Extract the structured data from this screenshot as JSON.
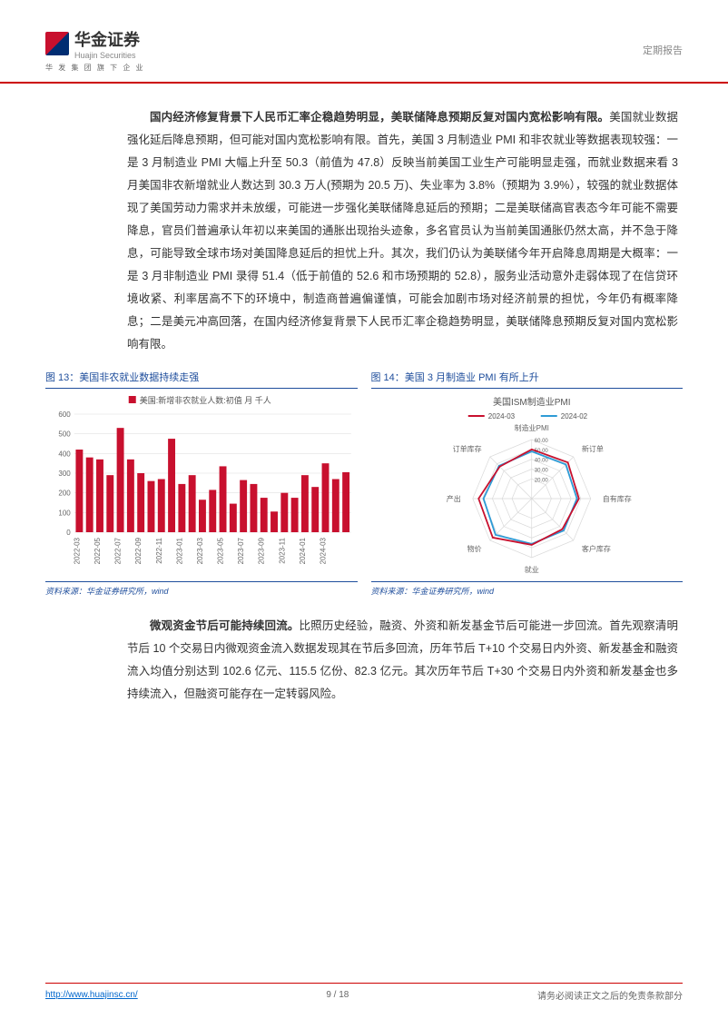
{
  "header": {
    "company_cn": "华金证券",
    "company_en": "Huajin Securities",
    "tagline": "华 发 集 团 旗 下 企 业",
    "report_type": "定期报告"
  },
  "para1": {
    "lead": "国内经济修复背景下人民币汇率企稳趋势明显，美联储降息预期反复对国内宽松影响有限。",
    "body": "美国就业数据强化延后降息预期，但可能对国内宽松影响有限。首先，美国 3 月制造业 PMI 和非农就业等数据表现较强：一是 3 月制造业 PMI 大幅上升至 50.3（前值为 47.8）反映当前美国工业生产可能明显走强，而就业数据来看 3 月美国非农新增就业人数达到 30.3 万人(预期为 20.5 万)、失业率为 3.8%（预期为 3.9%），较强的就业数据体现了美国劳动力需求并未放缓，可能进一步强化美联储降息延后的预期；二是美联储高官表态今年可能不需要降息，官员们普遍承认年初以来美国的通胀出现抬头迹象，多名官员认为当前美国通胀仍然太高，并不急于降息，可能导致全球市场对美国降息延后的担忧上升。其次，我们仍认为美联储今年开启降息周期是大概率：一是 3 月非制造业 PMI 录得 51.4（低于前值的 52.6 和市场预期的 52.8），服务业活动意外走弱体现了在信贷环境收紧、利率居高不下的环境中，制造商普遍偏谨慎，可能会加剧市场对经济前景的担忧，今年仍有概率降息；二是美元冲高回落，在国内经济修复背景下人民币汇率企稳趋势明显，美联储降息预期反复对国内宽松影响有限。"
  },
  "chart13": {
    "title": "图 13：美国非农就业数据持续走强",
    "legend": "美国:新增非农就业人数:初值 月 千人",
    "legend_marker_color": "#c8102e",
    "y_ticks": [
      0,
      100,
      200,
      300,
      400,
      500,
      600
    ],
    "ymax": 600,
    "x_labels": [
      "2022-03",
      "2022-05",
      "2022-07",
      "2022-09",
      "2022-11",
      "2023-01",
      "2023-03",
      "2023-05",
      "2023-07",
      "2023-09",
      "2023-11",
      "2024-01",
      "2024-03"
    ],
    "bars": [
      420,
      380,
      370,
      290,
      530,
      370,
      300,
      260,
      270,
      475,
      245,
      290,
      165,
      215,
      335,
      145,
      265,
      245,
      175,
      105,
      200,
      175,
      290,
      230,
      350,
      270,
      305
    ],
    "bar_color": "#c8102e",
    "grid_color": "#d9d9d9",
    "axis_color": "#666666",
    "label_fontsize": 8,
    "source": "资料来源：华金证券研究所，wind"
  },
  "chart14": {
    "title": "图 14：美国 3 月制造业 PMI 有所上升",
    "center_title": "美国ISM制造业PMI",
    "legend_items": [
      {
        "label": "2024-03",
        "color": "#c8102e"
      },
      {
        "label": "2024-02",
        "color": "#2e9bd6"
      }
    ],
    "axes": [
      "制造业PMI",
      "新订单",
      "自有库存",
      "客户库存",
      "就业",
      "物价",
      "产出",
      "订单库存"
    ],
    "rings": [
      60,
      50,
      40,
      30,
      20
    ],
    "ring_labels": [
      "60.00",
      "50.00",
      "40.00",
      "30.00",
      "20.00"
    ],
    "series_2024_03": [
      50,
      52,
      48,
      44,
      47,
      56,
      54,
      46
    ],
    "series_2024_02": [
      48,
      49,
      46,
      46,
      46,
      52,
      49,
      47
    ],
    "grid_color": "#d9d9d9",
    "label_fontsize": 8,
    "axis_label_color": "#666666",
    "source": "资料来源：华金证券研究所，wind"
  },
  "para2": {
    "lead": "微观资金节后可能持续回流。",
    "body": "比照历史经验，融资、外资和新发基金节后可能进一步回流。首先观察清明节后 10 个交易日内微观资金流入数据发现其在节后多回流，历年节后 T+10 个交易日内外资、新发基金和融资流入均值分别达到 102.6 亿元、115.5 亿份、82.3 亿元。其次历年节后 T+30 个交易日内外资和新发基金也多持续流入，但融资可能存在一定转弱风险。"
  },
  "footer": {
    "url": "http://www.huajinsc.cn/",
    "page": "9 / 18",
    "disclaimer": "请务必阅读正文之后的免责条款部分"
  }
}
